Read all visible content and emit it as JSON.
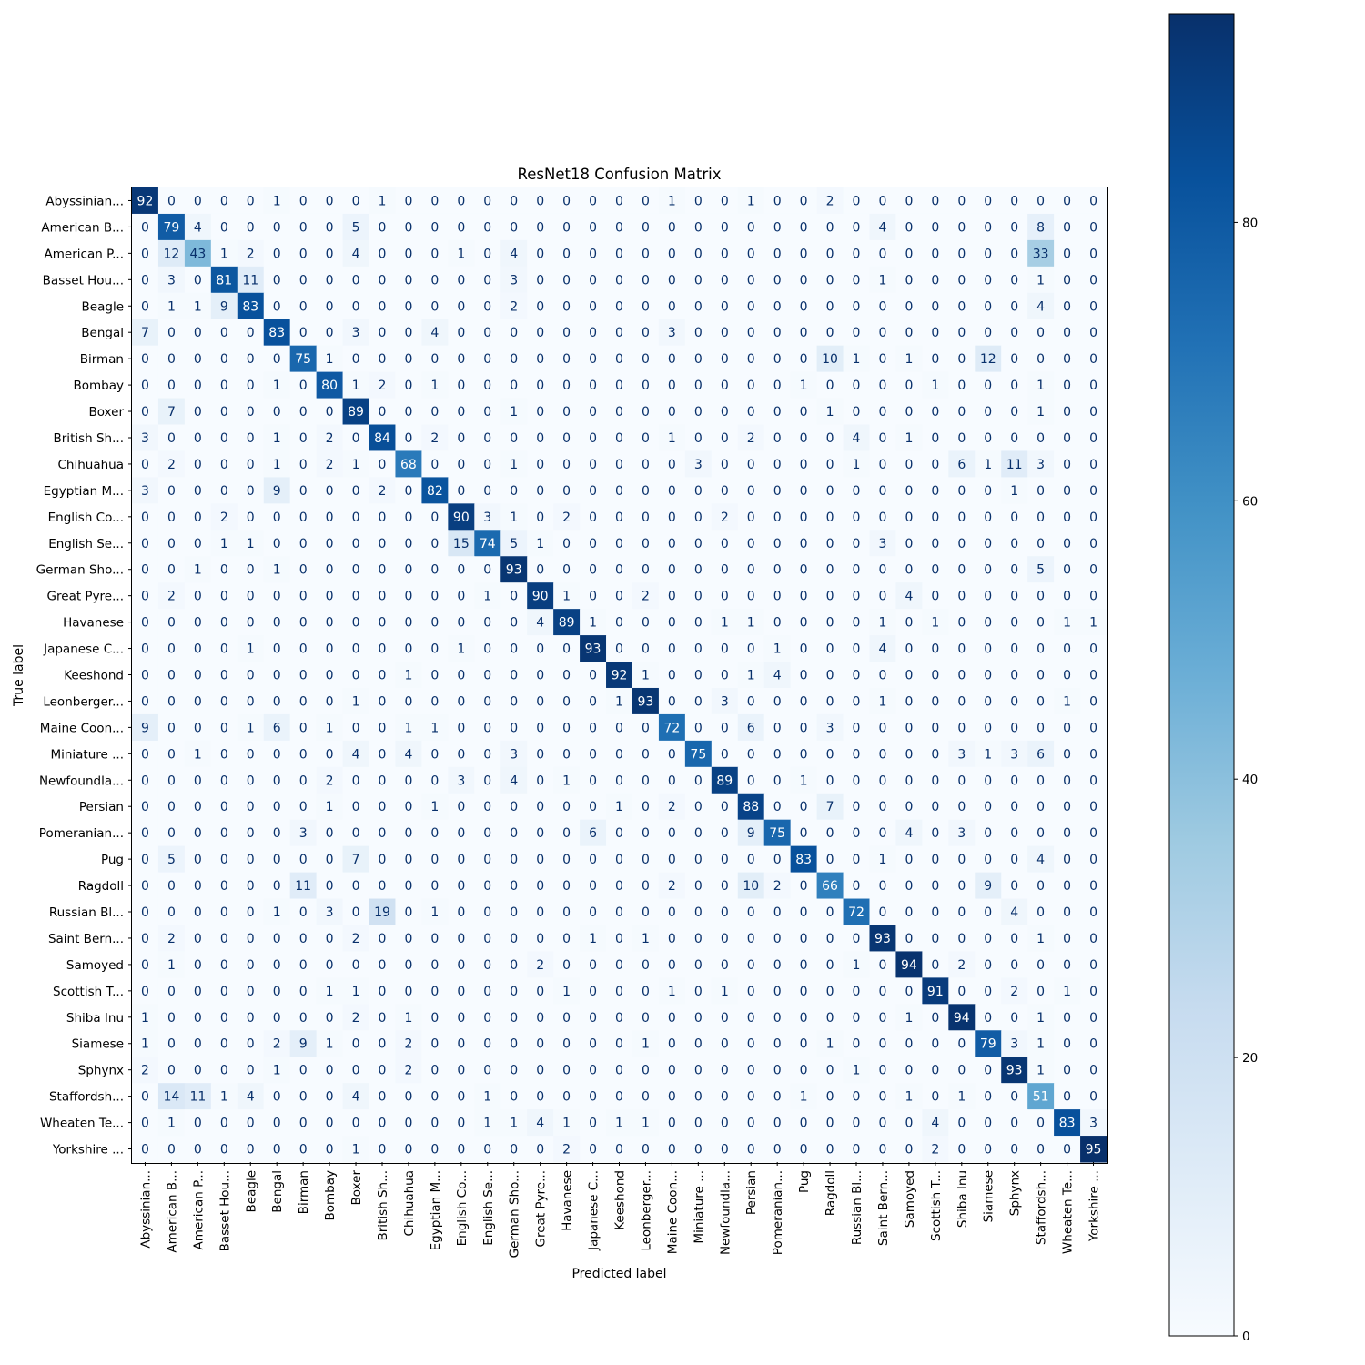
{
  "chart_data": {
    "type": "heatmap",
    "title": "ResNet18 Confusion Matrix",
    "xlabel": "Predicted label",
    "ylabel": "True label",
    "labels": [
      "Abyssinian...",
      "American B...",
      "American P...",
      "Basset Hou...",
      "Beagle",
      "Bengal",
      "Birman",
      "Bombay",
      "Boxer",
      "British Sh...",
      "Chihuahua",
      "Egyptian M...",
      "English Co...",
      "English Se...",
      "German Sho...",
      "Great Pyre...",
      "Havanese",
      "Japanese C...",
      "Keeshond",
      "Leonberger...",
      "Maine Coon...",
      "Miniature ...",
      "Newfoundla...",
      "Persian",
      "Pomeranian...",
      "Pug",
      "Ragdoll",
      "Russian Bl...",
      "Saint Bern...",
      "Samoyed",
      "Scottish T...",
      "Shiba Inu",
      "Siamese",
      "Sphynx",
      "Staffordsh...",
      "Wheaten Te...",
      "Yorkshire ..."
    ],
    "matrix": [
      [
        92,
        0,
        0,
        0,
        0,
        1,
        0,
        0,
        0,
        1,
        0,
        0,
        0,
        0,
        0,
        0,
        0,
        0,
        0,
        0,
        1,
        0,
        0,
        1,
        0,
        0,
        2,
        0,
        0,
        0,
        0,
        0,
        0,
        0,
        0,
        0,
        0
      ],
      [
        0,
        79,
        4,
        0,
        0,
        0,
        0,
        0,
        5,
        0,
        0,
        0,
        0,
        0,
        0,
        0,
        0,
        0,
        0,
        0,
        0,
        0,
        0,
        0,
        0,
        0,
        0,
        0,
        4,
        0,
        0,
        0,
        0,
        0,
        8,
        0,
        0
      ],
      [
        0,
        12,
        43,
        1,
        2,
        0,
        0,
        0,
        4,
        0,
        0,
        0,
        1,
        0,
        4,
        0,
        0,
        0,
        0,
        0,
        0,
        0,
        0,
        0,
        0,
        0,
        0,
        0,
        0,
        0,
        0,
        0,
        0,
        0,
        33,
        0,
        0
      ],
      [
        0,
        3,
        0,
        81,
        11,
        0,
        0,
        0,
        0,
        0,
        0,
        0,
        0,
        0,
        3,
        0,
        0,
        0,
        0,
        0,
        0,
        0,
        0,
        0,
        0,
        0,
        0,
        0,
        1,
        0,
        0,
        0,
        0,
        0,
        1,
        0,
        0
      ],
      [
        0,
        1,
        1,
        9,
        83,
        0,
        0,
        0,
        0,
        0,
        0,
        0,
        0,
        0,
        2,
        0,
        0,
        0,
        0,
        0,
        0,
        0,
        0,
        0,
        0,
        0,
        0,
        0,
        0,
        0,
        0,
        0,
        0,
        0,
        4,
        0,
        0
      ],
      [
        7,
        0,
        0,
        0,
        0,
        83,
        0,
        0,
        3,
        0,
        0,
        4,
        0,
        0,
        0,
        0,
        0,
        0,
        0,
        0,
        3,
        0,
        0,
        0,
        0,
        0,
        0,
        0,
        0,
        0,
        0,
        0,
        0,
        0,
        0,
        0,
        0
      ],
      [
        0,
        0,
        0,
        0,
        0,
        0,
        75,
        1,
        0,
        0,
        0,
        0,
        0,
        0,
        0,
        0,
        0,
        0,
        0,
        0,
        0,
        0,
        0,
        0,
        0,
        0,
        10,
        1,
        0,
        1,
        0,
        0,
        12,
        0,
        0,
        0,
        0
      ],
      [
        0,
        0,
        0,
        0,
        0,
        1,
        0,
        80,
        1,
        2,
        0,
        1,
        0,
        0,
        0,
        0,
        0,
        0,
        0,
        0,
        0,
        0,
        0,
        0,
        0,
        1,
        0,
        0,
        0,
        0,
        1,
        0,
        0,
        0,
        1,
        0,
        0
      ],
      [
        0,
        7,
        0,
        0,
        0,
        0,
        0,
        0,
        89,
        0,
        0,
        0,
        0,
        0,
        1,
        0,
        0,
        0,
        0,
        0,
        0,
        0,
        0,
        0,
        0,
        0,
        1,
        0,
        0,
        0,
        0,
        0,
        0,
        0,
        1,
        0,
        0
      ],
      [
        3,
        0,
        0,
        0,
        0,
        1,
        0,
        2,
        0,
        84,
        0,
        2,
        0,
        0,
        0,
        0,
        0,
        0,
        0,
        0,
        1,
        0,
        0,
        2,
        0,
        0,
        0,
        4,
        0,
        1,
        0,
        0,
        0,
        0,
        0,
        0,
        0
      ],
      [
        0,
        2,
        0,
        0,
        0,
        1,
        0,
        2,
        1,
        0,
        68,
        0,
        0,
        0,
        1,
        0,
        0,
        0,
        0,
        0,
        0,
        3,
        0,
        0,
        0,
        0,
        0,
        1,
        0,
        0,
        0,
        6,
        1,
        11,
        3,
        0,
        0
      ],
      [
        3,
        0,
        0,
        0,
        0,
        9,
        0,
        0,
        0,
        2,
        0,
        82,
        0,
        0,
        0,
        0,
        0,
        0,
        0,
        0,
        0,
        0,
        0,
        0,
        0,
        0,
        0,
        0,
        0,
        0,
        0,
        0,
        0,
        1,
        0,
        0,
        0
      ],
      [
        0,
        0,
        0,
        2,
        0,
        0,
        0,
        0,
        0,
        0,
        0,
        0,
        90,
        3,
        1,
        0,
        2,
        0,
        0,
        0,
        0,
        0,
        2,
        0,
        0,
        0,
        0,
        0,
        0,
        0,
        0,
        0,
        0,
        0,
        0,
        0,
        0
      ],
      [
        0,
        0,
        0,
        1,
        1,
        0,
        0,
        0,
        0,
        0,
        0,
        0,
        15,
        74,
        5,
        1,
        0,
        0,
        0,
        0,
        0,
        0,
        0,
        0,
        0,
        0,
        0,
        0,
        3,
        0,
        0,
        0,
        0,
        0,
        0,
        0,
        0
      ],
      [
        0,
        0,
        1,
        0,
        0,
        1,
        0,
        0,
        0,
        0,
        0,
        0,
        0,
        0,
        93,
        0,
        0,
        0,
        0,
        0,
        0,
        0,
        0,
        0,
        0,
        0,
        0,
        0,
        0,
        0,
        0,
        0,
        0,
        0,
        5,
        0,
        0
      ],
      [
        0,
        2,
        0,
        0,
        0,
        0,
        0,
        0,
        0,
        0,
        0,
        0,
        0,
        1,
        0,
        90,
        1,
        0,
        0,
        2,
        0,
        0,
        0,
        0,
        0,
        0,
        0,
        0,
        0,
        4,
        0,
        0,
        0,
        0,
        0,
        0,
        0
      ],
      [
        0,
        0,
        0,
        0,
        0,
        0,
        0,
        0,
        0,
        0,
        0,
        0,
        0,
        0,
        0,
        4,
        89,
        1,
        0,
        0,
        0,
        0,
        1,
        1,
        0,
        0,
        0,
        0,
        1,
        0,
        1,
        0,
        0,
        0,
        0,
        1,
        1
      ],
      [
        0,
        0,
        0,
        0,
        1,
        0,
        0,
        0,
        0,
        0,
        0,
        0,
        1,
        0,
        0,
        0,
        0,
        93,
        0,
        0,
        0,
        0,
        0,
        0,
        1,
        0,
        0,
        0,
        4,
        0,
        0,
        0,
        0,
        0,
        0,
        0,
        0
      ],
      [
        0,
        0,
        0,
        0,
        0,
        0,
        0,
        0,
        0,
        0,
        1,
        0,
        0,
        0,
        0,
        0,
        0,
        0,
        92,
        1,
        0,
        0,
        0,
        1,
        4,
        0,
        0,
        0,
        0,
        0,
        0,
        0,
        0,
        0,
        0,
        0,
        0
      ],
      [
        0,
        0,
        0,
        0,
        0,
        0,
        0,
        0,
        1,
        0,
        0,
        0,
        0,
        0,
        0,
        0,
        0,
        0,
        1,
        93,
        0,
        0,
        3,
        0,
        0,
        0,
        0,
        0,
        1,
        0,
        0,
        0,
        0,
        0,
        0,
        1,
        0
      ],
      [
        9,
        0,
        0,
        0,
        1,
        6,
        0,
        1,
        0,
        0,
        1,
        1,
        0,
        0,
        0,
        0,
        0,
        0,
        0,
        0,
        72,
        0,
        0,
        6,
        0,
        0,
        3,
        0,
        0,
        0,
        0,
        0,
        0,
        0,
        0,
        0,
        0
      ],
      [
        0,
        0,
        1,
        0,
        0,
        0,
        0,
        0,
        4,
        0,
        4,
        0,
        0,
        0,
        3,
        0,
        0,
        0,
        0,
        0,
        0,
        75,
        0,
        0,
        0,
        0,
        0,
        0,
        0,
        0,
        0,
        3,
        1,
        3,
        6,
        0,
        0
      ],
      [
        0,
        0,
        0,
        0,
        0,
        0,
        0,
        2,
        0,
        0,
        0,
        0,
        3,
        0,
        4,
        0,
        1,
        0,
        0,
        0,
        0,
        0,
        89,
        0,
        0,
        1,
        0,
        0,
        0,
        0,
        0,
        0,
        0,
        0,
        0,
        0,
        0
      ],
      [
        0,
        0,
        0,
        0,
        0,
        0,
        0,
        1,
        0,
        0,
        0,
        1,
        0,
        0,
        0,
        0,
        0,
        0,
        1,
        0,
        2,
        0,
        0,
        88,
        0,
        0,
        7,
        0,
        0,
        0,
        0,
        0,
        0,
        0,
        0,
        0,
        0
      ],
      [
        0,
        0,
        0,
        0,
        0,
        0,
        3,
        0,
        0,
        0,
        0,
        0,
        0,
        0,
        0,
        0,
        0,
        6,
        0,
        0,
        0,
        0,
        0,
        9,
        75,
        0,
        0,
        0,
        0,
        4,
        0,
        3,
        0,
        0,
        0,
        0,
        0
      ],
      [
        0,
        5,
        0,
        0,
        0,
        0,
        0,
        0,
        7,
        0,
        0,
        0,
        0,
        0,
        0,
        0,
        0,
        0,
        0,
        0,
        0,
        0,
        0,
        0,
        0,
        83,
        0,
        0,
        1,
        0,
        0,
        0,
        0,
        0,
        4,
        0,
        0
      ],
      [
        0,
        0,
        0,
        0,
        0,
        0,
        11,
        0,
        0,
        0,
        0,
        0,
        0,
        0,
        0,
        0,
        0,
        0,
        0,
        0,
        2,
        0,
        0,
        10,
        2,
        0,
        66,
        0,
        0,
        0,
        0,
        0,
        9,
        0,
        0,
        0,
        0
      ],
      [
        0,
        0,
        0,
        0,
        0,
        1,
        0,
        3,
        0,
        19,
        0,
        1,
        0,
        0,
        0,
        0,
        0,
        0,
        0,
        0,
        0,
        0,
        0,
        0,
        0,
        0,
        0,
        72,
        0,
        0,
        0,
        0,
        0,
        4,
        0,
        0,
        0
      ],
      [
        0,
        2,
        0,
        0,
        0,
        0,
        0,
        0,
        2,
        0,
        0,
        0,
        0,
        0,
        0,
        0,
        0,
        1,
        0,
        1,
        0,
        0,
        0,
        0,
        0,
        0,
        0,
        0,
        93,
        0,
        0,
        0,
        0,
        0,
        1,
        0,
        0
      ],
      [
        0,
        1,
        0,
        0,
        0,
        0,
        0,
        0,
        0,
        0,
        0,
        0,
        0,
        0,
        0,
        2,
        0,
        0,
        0,
        0,
        0,
        0,
        0,
        0,
        0,
        0,
        0,
        1,
        0,
        94,
        0,
        2,
        0,
        0,
        0,
        0,
        0
      ],
      [
        0,
        0,
        0,
        0,
        0,
        0,
        0,
        1,
        1,
        0,
        0,
        0,
        0,
        0,
        0,
        0,
        1,
        0,
        0,
        0,
        1,
        0,
        1,
        0,
        0,
        0,
        0,
        0,
        0,
        0,
        91,
        0,
        0,
        2,
        0,
        1,
        0
      ],
      [
        1,
        0,
        0,
        0,
        0,
        0,
        0,
        0,
        2,
        0,
        1,
        0,
        0,
        0,
        0,
        0,
        0,
        0,
        0,
        0,
        0,
        0,
        0,
        0,
        0,
        0,
        0,
        0,
        0,
        1,
        0,
        94,
        0,
        0,
        1,
        0,
        0
      ],
      [
        1,
        0,
        0,
        0,
        0,
        2,
        9,
        1,
        0,
        0,
        2,
        0,
        0,
        0,
        0,
        0,
        0,
        0,
        0,
        1,
        0,
        0,
        0,
        0,
        0,
        0,
        1,
        0,
        0,
        0,
        0,
        0,
        79,
        3,
        1,
        0,
        0
      ],
      [
        2,
        0,
        0,
        0,
        0,
        1,
        0,
        0,
        0,
        0,
        2,
        0,
        0,
        0,
        0,
        0,
        0,
        0,
        0,
        0,
        0,
        0,
        0,
        0,
        0,
        0,
        0,
        1,
        0,
        0,
        0,
        0,
        0,
        93,
        1,
        0,
        0
      ],
      [
        0,
        14,
        11,
        1,
        4,
        0,
        0,
        0,
        4,
        0,
        0,
        0,
        0,
        1,
        0,
        0,
        0,
        0,
        0,
        0,
        0,
        0,
        0,
        0,
        0,
        1,
        0,
        0,
        0,
        1,
        0,
        1,
        0,
        0,
        51,
        0,
        0
      ],
      [
        0,
        1,
        0,
        0,
        0,
        0,
        0,
        0,
        0,
        0,
        0,
        0,
        0,
        1,
        1,
        4,
        1,
        0,
        1,
        1,
        0,
        0,
        0,
        0,
        0,
        0,
        0,
        0,
        0,
        0,
        4,
        0,
        0,
        0,
        0,
        83,
        3
      ],
      [
        0,
        0,
        0,
        0,
        0,
        0,
        0,
        0,
        1,
        0,
        0,
        0,
        0,
        0,
        0,
        0,
        2,
        0,
        0,
        0,
        0,
        0,
        0,
        0,
        0,
        0,
        0,
        0,
        0,
        0,
        2,
        0,
        0,
        0,
        0,
        0,
        95
      ]
    ],
    "vmin": 0,
    "vmax": 95,
    "colormap": "Blues",
    "colorbar_ticks": [
      0,
      20,
      40,
      60,
      80
    ],
    "grid": false
  }
}
